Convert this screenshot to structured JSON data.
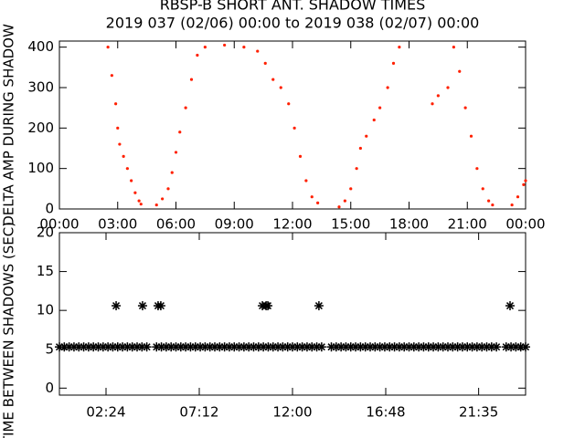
{
  "chart_data": [
    {
      "type": "scatter",
      "title": "RBSP-B SHORT ANT. SHADOW TIMES",
      "subtitle": "2019 037 (02/06) 00:00 to 2019 038 (02/07) 00:00",
      "y_label": "DELTA AMP DURING SHADOW",
      "marker": "dot",
      "color": "#ff2000",
      "x": [
        2.5,
        2.7,
        2.9,
        3.0,
        3.1,
        3.3,
        3.5,
        3.7,
        3.9,
        4.1,
        4.2,
        5.0,
        5.3,
        5.6,
        5.8,
        6.0,
        6.2,
        6.5,
        6.8,
        7.1,
        7.5,
        8.5,
        9.5,
        10.2,
        10.6,
        11.0,
        11.4,
        11.8,
        12.1,
        12.4,
        12.7,
        13.0,
        13.3,
        14.4,
        14.7,
        15.0,
        15.3,
        15.5,
        15.8,
        16.2,
        16.5,
        16.9,
        17.2,
        17.5,
        19.2,
        19.5,
        20.0,
        20.3,
        20.6,
        20.9,
        21.2,
        21.5,
        21.8,
        22.1,
        22.3,
        23.3,
        23.6,
        23.9,
        24.0
      ],
      "values": [
        400,
        330,
        260,
        200,
        160,
        130,
        100,
        70,
        40,
        20,
        12,
        10,
        25,
        50,
        90,
        140,
        190,
        250,
        320,
        380,
        400,
        405,
        400,
        390,
        360,
        320,
        300,
        260,
        200,
        130,
        70,
        30,
        15,
        5,
        20,
        50,
        100,
        150,
        180,
        220,
        250,
        300,
        360,
        400,
        260,
        280,
        300,
        400,
        340,
        250,
        180,
        100,
        50,
        20,
        10,
        10,
        30,
        60,
        70
      ],
      "xlim": [
        0,
        24
      ],
      "ylim": [
        0,
        415
      ],
      "xticks": [
        {
          "value": 0,
          "label": "00:00"
        },
        {
          "value": 3,
          "label": "03:00"
        },
        {
          "value": 6,
          "label": "06:00"
        },
        {
          "value": 9,
          "label": "09:00"
        },
        {
          "value": 12,
          "label": "12:00"
        },
        {
          "value": 15,
          "label": "15:00"
        },
        {
          "value": 18,
          "label": "18:00"
        },
        {
          "value": 21,
          "label": "21:00"
        },
        {
          "value": 24,
          "label": "00:00"
        }
      ],
      "yticks": [
        0,
        100,
        200,
        300,
        400
      ]
    },
    {
      "type": "scatter",
      "y_label": "TIME BETWEEN SHADOWS (SEC)",
      "marker": "asterisk",
      "color": "#000000",
      "x": [
        0,
        0.25,
        0.5,
        0.75,
        1,
        1.25,
        1.5,
        1.75,
        2,
        2.25,
        2.5,
        2.75,
        3,
        3.25,
        3.5,
        3.75,
        4,
        4.25,
        4.5,
        5,
        5.25,
        5.5,
        5.75,
        6,
        6.25,
        6.5,
        6.75,
        7,
        7.25,
        7.5,
        7.75,
        8,
        8.25,
        8.5,
        8.75,
        9,
        9.25,
        9.5,
        9.75,
        10,
        10.25,
        10.5,
        10.75,
        11,
        11.25,
        11.5,
        11.75,
        12,
        12.25,
        12.5,
        12.75,
        13,
        13.25,
        13.5,
        14,
        14.25,
        14.5,
        14.75,
        15,
        15.25,
        15.5,
        15.75,
        16,
        16.25,
        16.5,
        16.75,
        17,
        17.25,
        17.5,
        17.75,
        18,
        18.25,
        18.5,
        18.75,
        19,
        19.25,
        19.5,
        19.75,
        20,
        20.25,
        20.5,
        20.75,
        21,
        21.25,
        21.5,
        21.75,
        22,
        22.25,
        22.5,
        23,
        23.25,
        23.5,
        23.75,
        24,
        2.92,
        4.28,
        5.08,
        5.22,
        10.45,
        10.64,
        10.73,
        13.36,
        23.2
      ],
      "values": [
        5.3,
        5.3,
        5.3,
        5.3,
        5.3,
        5.3,
        5.3,
        5.3,
        5.3,
        5.3,
        5.3,
        5.3,
        5.3,
        5.3,
        5.3,
        5.3,
        5.3,
        5.3,
        5.3,
        5.3,
        5.3,
        5.3,
        5.3,
        5.3,
        5.3,
        5.3,
        5.3,
        5.3,
        5.3,
        5.3,
        5.3,
        5.3,
        5.3,
        5.3,
        5.3,
        5.3,
        5.3,
        5.3,
        5.3,
        5.3,
        5.3,
        5.3,
        5.3,
        5.3,
        5.3,
        5.3,
        5.3,
        5.3,
        5.3,
        5.3,
        5.3,
        5.3,
        5.3,
        5.3,
        5.3,
        5.3,
        5.3,
        5.3,
        5.3,
        5.3,
        5.3,
        5.3,
        5.3,
        5.3,
        5.3,
        5.3,
        5.3,
        5.3,
        5.3,
        5.3,
        5.3,
        5.3,
        5.3,
        5.3,
        5.3,
        5.3,
        5.3,
        5.3,
        5.3,
        5.3,
        5.3,
        5.3,
        5.3,
        5.3,
        5.3,
        5.3,
        5.3,
        5.3,
        5.3,
        5.3,
        5.3,
        5.3,
        5.3,
        5.3,
        10.6,
        10.6,
        10.6,
        10.6,
        10.6,
        10.6,
        10.6,
        10.6,
        10.6
      ],
      "xlim": [
        0,
        24
      ],
      "ylim": [
        -0.9,
        20
      ],
      "xticks": [
        {
          "value": 2.4,
          "label": "02:24"
        },
        {
          "value": 7.2,
          "label": "07:12"
        },
        {
          "value": 12,
          "label": "12:00"
        },
        {
          "value": 16.8,
          "label": "16:48"
        },
        {
          "value": 21.583,
          "label": "21:35"
        }
      ],
      "yticks": [
        0,
        5,
        10,
        15,
        20
      ]
    }
  ]
}
